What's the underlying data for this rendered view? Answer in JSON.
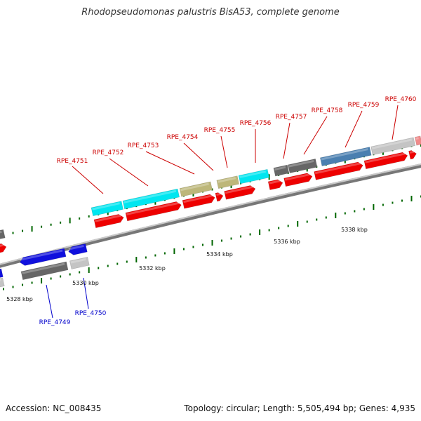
{
  "title": "Rhodopseudomonas palustris BisA53, complete genome",
  "accession_label": "Accession: NC_008435",
  "summary_label": "Topology: circular; Length: 5,505,494 bp; Genes: 4,935",
  "colors": {
    "forward_label": "#cc0000",
    "reverse_label": "#0000cc",
    "tick": "#006600",
    "backbone": "#888888",
    "cds_red": "#ee0000",
    "cds_blue": "#1010dd",
    "cyan": "#00e6f0",
    "khaki": "#bdb77a",
    "gray_dark": "#666666",
    "gray_light": "#c4c4c4",
    "steel_blue": "#4a7fb0",
    "pink": "#f08a8a"
  },
  "position_labels": [
    "5328 kbp",
    "5330 kbp",
    "5332 kbp",
    "5334 kbp",
    "5336 kbp",
    "5338 kbp"
  ],
  "forward_genes": [
    "RPE_4751",
    "RPE_4752",
    "RPE_4753",
    "RPE_4754",
    "RPE_4755",
    "RPE_4756",
    "RPE_4757",
    "RPE_4758",
    "RPE_4759",
    "RPE_4760"
  ],
  "reverse_genes": [
    "RPE_4749",
    "RPE_4750"
  ]
}
